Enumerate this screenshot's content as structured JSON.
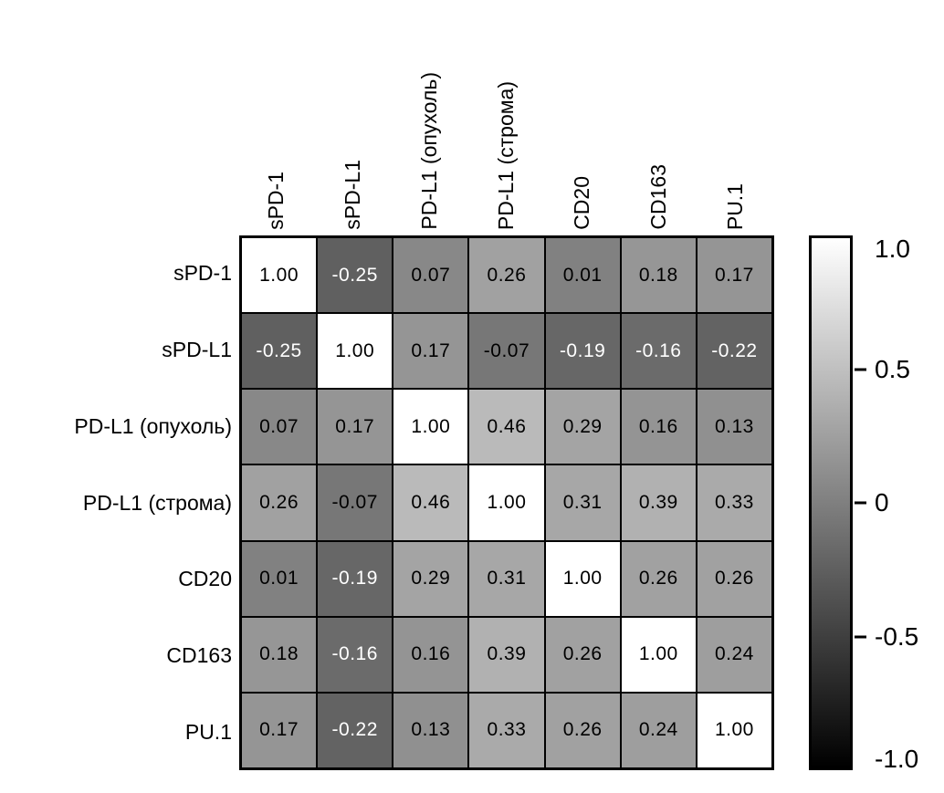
{
  "figure": {
    "background": "#ffffff",
    "border_color": "#000000",
    "text_color": "#000000"
  },
  "chart_data": {
    "type": "heatmap",
    "title": "",
    "categories": [
      "sPD-1",
      "sPD-L1",
      "PD-L1 (опухоль)",
      "PD-L1 (строма)",
      "CD20",
      "CD163",
      "PU.1"
    ],
    "matrix": [
      [
        1.0,
        -0.25,
        0.07,
        0.26,
        0.01,
        0.18,
        0.17
      ],
      [
        -0.25,
        1.0,
        0.17,
        -0.07,
        -0.19,
        -0.16,
        -0.22
      ],
      [
        0.07,
        0.17,
        1.0,
        0.46,
        0.29,
        0.16,
        0.13
      ],
      [
        0.26,
        -0.07,
        0.46,
        1.0,
        0.31,
        0.39,
        0.33
      ],
      [
        0.01,
        -0.19,
        0.29,
        0.31,
        1.0,
        0.26,
        0.26
      ],
      [
        0.18,
        -0.16,
        0.16,
        0.39,
        0.26,
        1.0,
        0.24
      ],
      [
        0.17,
        -0.22,
        0.13,
        0.33,
        0.26,
        0.24,
        1.0
      ]
    ],
    "value_decimals": 2,
    "colormap": {
      "name": "grayscale",
      "min_color": "#000000",
      "max_color": "#ffffff",
      "vmin": -1,
      "vmax": 1
    },
    "colorbar": {
      "position": "right",
      "tick_labels": [
        "1.0",
        "0.5",
        "0",
        "-0.5",
        "-1.0"
      ],
      "tick_values": [
        1.0,
        0.5,
        0.0,
        -0.5,
        -1.0
      ]
    },
    "grid": true,
    "legend_position": "none"
  }
}
